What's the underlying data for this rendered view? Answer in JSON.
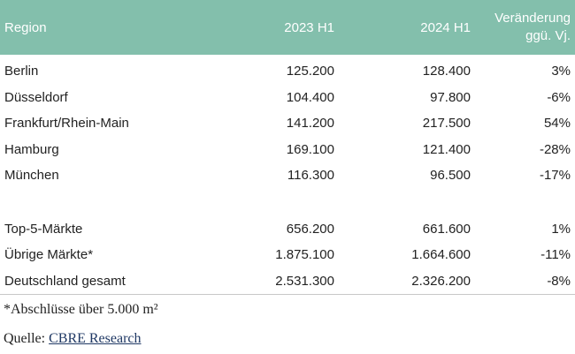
{
  "table": {
    "headers": {
      "region": "Region",
      "h1_2023": "2023 H1",
      "h1_2024": "2024 H1",
      "change_line1": "Veränderung",
      "change_line2": "ggü. Vj."
    },
    "rows": [
      {
        "region": "Berlin",
        "h1_2023": "125.200",
        "h1_2024": "128.400",
        "change": "3%"
      },
      {
        "region": "Düsseldorf",
        "h1_2023": "104.400",
        "h1_2024": "97.800",
        "change": "-6%"
      },
      {
        "region": "Frankfurt/Rhein-Main",
        "h1_2023": "141.200",
        "h1_2024": "217.500",
        "change": "54%"
      },
      {
        "region": "Hamburg",
        "h1_2023": "169.100",
        "h1_2024": "121.400",
        "change": "-28%"
      },
      {
        "region": "München",
        "h1_2023": "116.300",
        "h1_2024": "96.500",
        "change": "-17%"
      }
    ],
    "totals": [
      {
        "region": "Top-5-Märkte",
        "h1_2023": "656.200",
        "h1_2024": "661.600",
        "change": "1%"
      },
      {
        "region": "Übrige Märkte*",
        "h1_2023": "1.875.100",
        "h1_2024": "1.664.600",
        "change": "-11%"
      },
      {
        "region": "Deutschland gesamt",
        "h1_2023": "2.531.300",
        "h1_2024": "2.326.200",
        "change": "-8%"
      }
    ]
  },
  "footnote": "*Abschlüsse über 5.000 m²",
  "source": {
    "prefix": "Quelle: ",
    "link_text": "CBRE Research"
  },
  "colors": {
    "header_bg": "#83bfac",
    "header_text": "#ffffff",
    "link": "#1f3864"
  }
}
